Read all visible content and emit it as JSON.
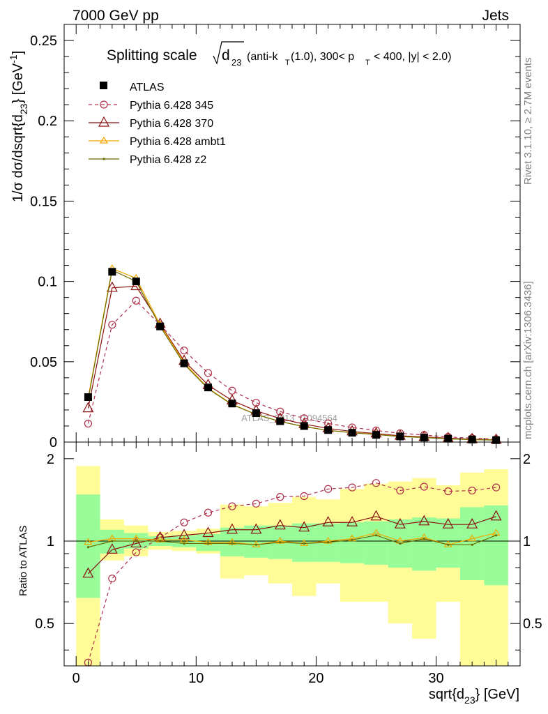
{
  "header": {
    "left": "7000 GeV pp",
    "right": "Jets"
  },
  "title": {
    "main": "Splitting scale",
    "symbol": "d",
    "symbol_sub": "23",
    "cut_prefix": "(anti-k",
    "cut_sub_T": "T",
    "cut_mid": "(1.0), 300< p",
    "cut_sub_T2": "T",
    "cut_end": "< 400, |y| < 2.0)"
  },
  "side_labels": {
    "rivet": "Rivet 3.1.10, ≥ 2.7M events",
    "mcplots": "mcplots.cern.ch [arXiv:1306.3436]"
  },
  "watermark": "ATLAS_2013_I1094564",
  "axes": {
    "main_ylabel": {
      "a": "1/σ dσ/dsqrt{d",
      "a_sub": "23",
      "b": "} [GeV",
      "b_sup": "-1",
      "c": "]"
    },
    "ratio_ylabel": "Ratio to ATLAS",
    "xlabel": {
      "a": "sqrt{d",
      "a_sub": "23",
      "b": "} [GeV]"
    },
    "x_ticks": [
      "0",
      "10",
      "20",
      "30"
    ],
    "main_y_ticks": [
      "0",
      "0.05",
      "0.1",
      "0.15",
      "0.2",
      "0.25"
    ],
    "ratio_y_ticks": [
      "0.5",
      "1",
      "2"
    ]
  },
  "legend": [
    {
      "label": "ATLAS"
    },
    {
      "label": "Pythia 6.428 345"
    },
    {
      "label": "Pythia 6.428 370"
    },
    {
      "label": "Pythia 6.428 ambt1"
    },
    {
      "label": "Pythia 6.428 z2"
    }
  ],
  "colors": {
    "data": "#000000",
    "p345": "#b0304a",
    "p370": "#8a1010",
    "ambt1": "#f0a800",
    "z2": "#6b6b00",
    "band_inner": "#98fc98",
    "band_outer": "#fffc98"
  },
  "chart_data": {
    "type": "line",
    "x": [
      1,
      3,
      5,
      7,
      9,
      11,
      13,
      15,
      17,
      19,
      21,
      23,
      25,
      27,
      29,
      31,
      33,
      35
    ],
    "bin_edges": [
      0,
      2,
      4,
      6,
      8,
      10,
      12,
      14,
      16,
      18,
      20,
      22,
      24,
      26,
      28,
      30,
      32,
      34,
      36
    ],
    "xlim": [
      -1,
      37
    ],
    "main_ylim": [
      0,
      0.26
    ],
    "ratio_ylim": [
      0.35,
      2.3
    ],
    "ratio_log_scale": true,
    "data": [
      0.028,
      0.106,
      0.1,
      0.072,
      0.049,
      0.034,
      0.024,
      0.018,
      0.013,
      0.01,
      0.0075,
      0.0058,
      0.0045,
      0.0035,
      0.0028,
      0.0021,
      0.0016,
      0.0012
    ],
    "series": [
      {
        "name": "Pythia 6.428 345",
        "marker": "circle",
        "dashed": true,
        "values": [
          0.0115,
          0.073,
          0.088,
          0.073,
          0.057,
          0.043,
          0.032,
          0.0245,
          0.019,
          0.0148,
          0.0116,
          0.0091,
          0.0072,
          0.0055,
          0.0044,
          0.0032,
          0.0024,
          0.0018
        ]
      },
      {
        "name": "Pythia 6.428 370",
        "marker": "triangle",
        "dashed": false,
        "values": [
          0.021,
          0.096,
          0.097,
          0.0735,
          0.0505,
          0.0355,
          0.0258,
          0.0195,
          0.0146,
          0.0112,
          0.0085,
          0.0066,
          0.0053,
          0.0039,
          0.0032,
          0.0024,
          0.0018,
          0.0014
        ]
      },
      {
        "name": "Pythia 6.428 ambt1",
        "marker": "small-triangle",
        "dashed": false,
        "values": [
          0.0275,
          0.108,
          0.102,
          0.073,
          0.0495,
          0.0335,
          0.0236,
          0.0172,
          0.0128,
          0.0097,
          0.0073,
          0.0059,
          0.0048,
          0.0035,
          0.0029,
          0.0021,
          0.0016,
          0.0013
        ]
      },
      {
        "name": "Pythia 6.428 z2",
        "marker": "dot",
        "dashed": false,
        "values": [
          0.0265,
          0.107,
          0.1,
          0.072,
          0.0485,
          0.0332,
          0.0233,
          0.0172,
          0.0128,
          0.0096,
          0.0073,
          0.0058,
          0.0047,
          0.0034,
          0.0028,
          0.002,
          0.0015,
          0.0012
        ]
      }
    ],
    "ratios": {
      "p345": [
        0.36,
        0.73,
        0.91,
        1.03,
        1.17,
        1.27,
        1.34,
        1.37,
        1.45,
        1.46,
        1.55,
        1.57,
        1.63,
        1.53,
        1.58,
        1.52,
        1.53,
        1.57
      ],
      "p370": [
        0.76,
        0.93,
        0.98,
        1.03,
        1.05,
        1.07,
        1.1,
        1.1,
        1.14,
        1.12,
        1.17,
        1.17,
        1.23,
        1.15,
        1.18,
        1.15,
        1.15,
        1.23
      ],
      "ambt1": [
        0.99,
        1.02,
        1.02,
        1.01,
        1.01,
        0.99,
        0.99,
        0.97,
        1.0,
        0.98,
        1.0,
        1.02,
        1.07,
        1.0,
        1.03,
        0.97,
        1.02,
        1.07
      ],
      "z2": [
        0.95,
        1.0,
        1.0,
        1.0,
        0.98,
        0.98,
        0.98,
        0.97,
        0.99,
        0.98,
        0.99,
        1.01,
        1.05,
        0.98,
        1.02,
        0.97,
        0.97,
        1.05
      ]
    },
    "band_inner": [
      [
        0.62,
        1.48
      ],
      [
        0.9,
        1.1
      ],
      [
        0.94,
        1.07
      ],
      [
        0.96,
        1.04
      ],
      [
        0.95,
        1.05
      ],
      [
        0.92,
        1.06
      ],
      [
        0.88,
        1.12
      ],
      [
        0.87,
        1.14
      ],
      [
        0.86,
        1.14
      ],
      [
        0.84,
        1.16
      ],
      [
        0.84,
        1.16
      ],
      [
        0.83,
        1.17
      ],
      [
        0.82,
        1.18
      ],
      [
        0.8,
        1.2
      ],
      [
        0.78,
        1.22
      ],
      [
        0.8,
        1.21
      ],
      [
        0.72,
        1.33
      ],
      [
        0.69,
        1.35
      ]
    ],
    "band_outer": [
      [
        0.35,
        1.88
      ],
      [
        0.85,
        1.2
      ],
      [
        0.88,
        1.14
      ],
      [
        0.93,
        1.08
      ],
      [
        0.92,
        1.09
      ],
      [
        0.9,
        1.11
      ],
      [
        0.73,
        1.36
      ],
      [
        0.75,
        1.34
      ],
      [
        0.7,
        1.38
      ],
      [
        0.63,
        1.45
      ],
      [
        0.7,
        1.42
      ],
      [
        0.6,
        1.55
      ],
      [
        0.6,
        1.62
      ],
      [
        0.5,
        1.65
      ],
      [
        0.44,
        1.7
      ],
      [
        0.6,
        1.6
      ],
      [
        0.35,
        1.78
      ],
      [
        0.35,
        1.83
      ]
    ]
  }
}
